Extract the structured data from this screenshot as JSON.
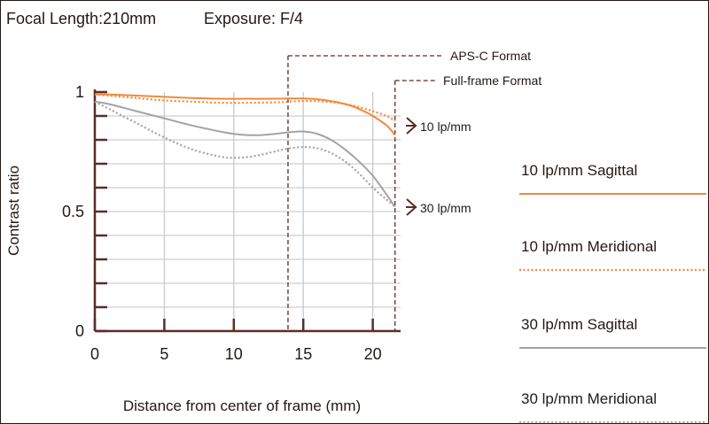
{
  "header": {
    "focal_length": "Focal Length:210mm",
    "exposure": "Exposure: F/4"
  },
  "chart_data": {
    "type": "line",
    "title": "",
    "xlabel": "Distance from center of frame (mm)",
    "ylabel": "Contrast ratio",
    "xlim": [
      0,
      22
    ],
    "ylim": [
      0,
      1
    ],
    "x_ticks": [
      0,
      5,
      10,
      15,
      20
    ],
    "x_tick_labels": [
      "0",
      "5",
      "10",
      "15",
      "20"
    ],
    "y_ticks": [
      0,
      0.5,
      1
    ],
    "y_tick_labels": [
      "0",
      "0.5",
      "1"
    ],
    "y_minor_step": 0.1,
    "grid": true,
    "series": [
      {
        "name": "10 lp/mm Sagittal",
        "color": "#f08a3c",
        "dash": "solid",
        "x": [
          0,
          1,
          3,
          5,
          7,
          9,
          11,
          13,
          14,
          15,
          16,
          17,
          18,
          19,
          20,
          21,
          21.6
        ],
        "y": [
          0.99,
          0.99,
          0.985,
          0.98,
          0.975,
          0.972,
          0.972,
          0.972,
          0.973,
          0.973,
          0.97,
          0.962,
          0.95,
          0.93,
          0.9,
          0.86,
          0.82
        ]
      },
      {
        "name": "10 lp/mm Meridional",
        "color": "#f08a3c",
        "dash": "dotted",
        "x": [
          0,
          1,
          3,
          5,
          7,
          9,
          11,
          13,
          14,
          15,
          16,
          17,
          18,
          19,
          20,
          21,
          21.6
        ],
        "y": [
          0.99,
          0.985,
          0.975,
          0.965,
          0.96,
          0.955,
          0.955,
          0.957,
          0.96,
          0.962,
          0.962,
          0.958,
          0.95,
          0.938,
          0.92,
          0.9,
          0.88
        ]
      },
      {
        "name": "30 lp/mm Sagittal",
        "color": "#a3a3a3",
        "dash": "solid",
        "x": [
          0,
          1,
          3,
          5,
          7,
          9,
          10,
          11,
          12,
          13,
          14,
          15,
          16,
          17,
          18,
          19,
          20,
          21,
          21.6
        ],
        "y": [
          0.96,
          0.95,
          0.92,
          0.89,
          0.86,
          0.835,
          0.825,
          0.82,
          0.82,
          0.825,
          0.832,
          0.835,
          0.825,
          0.8,
          0.76,
          0.71,
          0.65,
          0.57,
          0.52
        ]
      },
      {
        "name": "30 lp/mm Meridional",
        "color": "#a3a3a3",
        "dash": "dotted",
        "x": [
          0,
          1,
          3,
          5,
          7,
          9,
          10,
          11,
          12,
          13,
          14,
          15,
          16,
          17,
          18,
          19,
          20,
          21,
          21.6
        ],
        "y": [
          0.96,
          0.93,
          0.87,
          0.81,
          0.76,
          0.73,
          0.725,
          0.728,
          0.738,
          0.752,
          0.764,
          0.77,
          0.765,
          0.745,
          0.71,
          0.66,
          0.6,
          0.55,
          0.52
        ]
      }
    ],
    "annotations": {
      "format_lines": [
        {
          "label": "APS-C Format",
          "x": 13.9,
          "color": "#5c2c28"
        },
        {
          "label": "Full-frame Format",
          "x": 21.6,
          "color": "#5c2c28"
        }
      ],
      "curve_group_labels": [
        {
          "label": "10 lp/mm",
          "group": "10"
        },
        {
          "label": "30 lp/mm",
          "group": "30"
        }
      ]
    },
    "legend_position": "right"
  },
  "colors": {
    "axis": "#5c2c28",
    "grid": "#cfcfcf",
    "text": "#231815",
    "orange": "#f08a3c",
    "gray": "#a3a3a3"
  }
}
